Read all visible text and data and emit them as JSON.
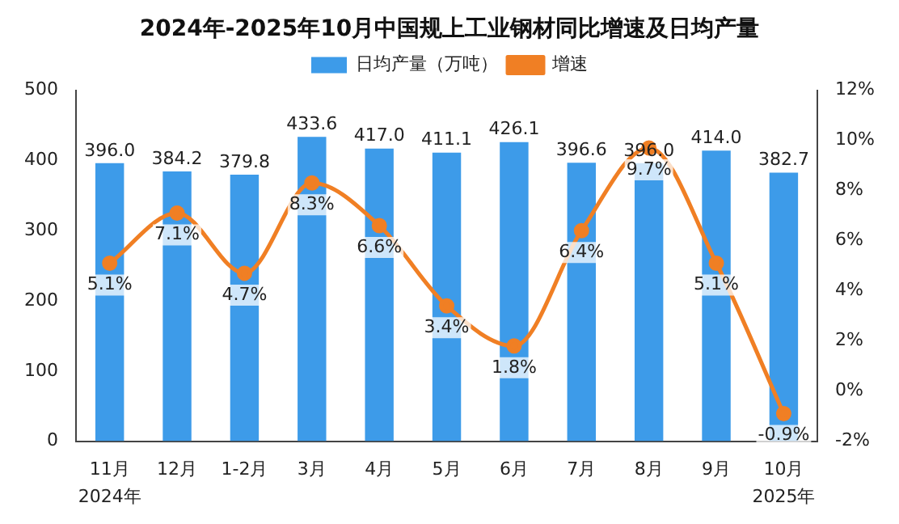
{
  "chart_data": {
    "type": "bar",
    "title": "2024年-2025年10月中国规上工业钢材同比增速及日均产量",
    "categories": [
      "11月",
      "12月",
      "1-2月",
      "3月",
      "4月",
      "5月",
      "6月",
      "7月",
      "8月",
      "9月",
      "10月"
    ],
    "series": [
      {
        "name": "日均产量（万吨）",
        "color": "#3d9be9",
        "values": [
          396.0,
          384.2,
          379.8,
          433.6,
          417.0,
          411.1,
          426.1,
          396.6,
          396.0,
          414.0,
          382.7
        ],
        "value_labels": [
          "396.0",
          "384.2",
          "379.8",
          "433.6",
          "417.0",
          "411.1",
          "426.1",
          "396.6",
          "396.0",
          "414.0",
          "382.7"
        ]
      },
      {
        "name": "增速",
        "type": "line",
        "axis": "y2",
        "color": "#f07f24",
        "values": [
          5.1,
          7.1,
          4.7,
          8.3,
          6.6,
          3.4,
          1.8,
          6.4,
          9.7,
          5.1,
          -0.9
        ],
        "value_labels": [
          "5.1%",
          "7.1%",
          "4.7%",
          "8.3%",
          "6.6%",
          "3.4%",
          "1.8%",
          "6.4%",
          "9.7%",
          "5.1%",
          "-0.9%"
        ]
      }
    ],
    "ylim": [
      0,
      500
    ],
    "yticks": [
      0,
      100,
      200,
      300,
      400,
      500
    ],
    "y2lim": [
      -2,
      12
    ],
    "y2ticks": [
      {
        "value": -2,
        "label": "-2%"
      },
      {
        "value": 0,
        "label": "0%"
      },
      {
        "value": 2,
        "label": "2%"
      },
      {
        "value": 4,
        "label": "4%"
      },
      {
        "value": 6,
        "label": "6%"
      },
      {
        "value": 8,
        "label": "8%"
      },
      {
        "value": 10,
        "label": "10%"
      },
      {
        "value": 12,
        "label": "12%"
      }
    ],
    "annotations": [
      "2024年",
      "2025年"
    ],
    "legend": "top",
    "grid": false,
    "marker": "circle",
    "line_style": "solid"
  }
}
